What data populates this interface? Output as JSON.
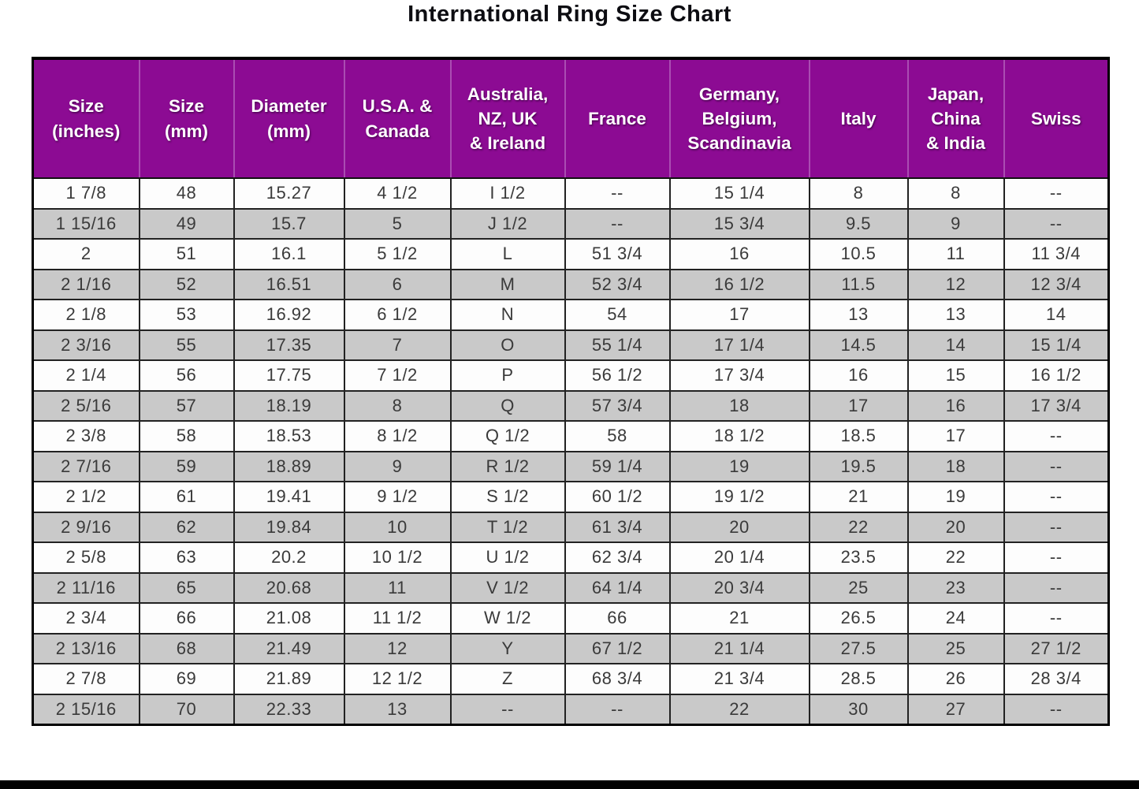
{
  "title": "International Ring Size Chart",
  "colors": {
    "header-bg": "#8C0B93",
    "header-text": "#FFFFFF",
    "stripe-bg": "#C9C9C9",
    "row-bg": "#FDFDFD",
    "grid-border": "#222222",
    "cell-text": "#3A3A3A",
    "bottom-bar": "#000000"
  },
  "chart_data": {
    "type": "table",
    "title": "International Ring Size Chart",
    "columns": [
      "Size\n(inches)",
      "Size\n(mm)",
      "Diameter\n(mm)",
      "U.S.A. &\nCanada",
      "Australia,\nNZ, UK\n& Ireland",
      "France",
      "Germany,\nBelgium,\nScandinavia",
      "Italy",
      "Japan,\nChina\n& India",
      "Swiss"
    ],
    "rows": [
      [
        "1 7/8",
        "48",
        "15.27",
        "4 1/2",
        "I 1/2",
        "--",
        "15 1/4",
        "8",
        "8",
        "--"
      ],
      [
        "1 15/16",
        "49",
        "15.7",
        "5",
        "J 1/2",
        "--",
        "15 3/4",
        "9.5",
        "9",
        "--"
      ],
      [
        "2",
        "51",
        "16.1",
        "5 1/2",
        "L",
        "51 3/4",
        "16",
        "10.5",
        "11",
        "11 3/4"
      ],
      [
        "2 1/16",
        "52",
        "16.51",
        "6",
        "M",
        "52 3/4",
        "16 1/2",
        "11.5",
        "12",
        "12 3/4"
      ],
      [
        "2 1/8",
        "53",
        "16.92",
        "6 1/2",
        "N",
        "54",
        "17",
        "13",
        "13",
        "14"
      ],
      [
        "2 3/16",
        "55",
        "17.35",
        "7",
        "O",
        "55 1/4",
        "17 1/4",
        "14.5",
        "14",
        "15 1/4"
      ],
      [
        "2 1/4",
        "56",
        "17.75",
        "7 1/2",
        "P",
        "56 1/2",
        "17 3/4",
        "16",
        "15",
        "16 1/2"
      ],
      [
        "2 5/16",
        "57",
        "18.19",
        "8",
        "Q",
        "57 3/4",
        "18",
        "17",
        "16",
        "17 3/4"
      ],
      [
        "2 3/8",
        "58",
        "18.53",
        "8 1/2",
        "Q 1/2",
        "58",
        "18 1/2",
        "18.5",
        "17",
        "--"
      ],
      [
        "2 7/16",
        "59",
        "18.89",
        "9",
        "R 1/2",
        "59 1/4",
        "19",
        "19.5",
        "18",
        "--"
      ],
      [
        "2 1/2",
        "61",
        "19.41",
        "9 1/2",
        "S 1/2",
        "60 1/2",
        "19 1/2",
        "21",
        "19",
        "--"
      ],
      [
        "2 9/16",
        "62",
        "19.84",
        "10",
        "T 1/2",
        "61 3/4",
        "20",
        "22",
        "20",
        "--"
      ],
      [
        "2 5/8",
        "63",
        "20.2",
        "10 1/2",
        "U 1/2",
        "62 3/4",
        "20 1/4",
        "23.5",
        "22",
        "--"
      ],
      [
        "2 11/16",
        "65",
        "20.68",
        "11",
        "V 1/2",
        "64 1/4",
        "20 3/4",
        "25",
        "23",
        "--"
      ],
      [
        "2 3/4",
        "66",
        "21.08",
        "11 1/2",
        "W 1/2",
        "66",
        "21",
        "26.5",
        "24",
        "--"
      ],
      [
        "2 13/16",
        "68",
        "21.49",
        "12",
        "Y",
        "67 1/2",
        "21 1/4",
        "27.5",
        "25",
        "27 1/2"
      ],
      [
        "2 7/8",
        "69",
        "21.89",
        "12 1/2",
        "Z",
        "68 3/4",
        "21 3/4",
        "28.5",
        "26",
        "28 3/4"
      ],
      [
        "2 15/16",
        "70",
        "22.33",
        "13",
        "--",
        "--",
        "22",
        "30",
        "27",
        "--"
      ]
    ]
  }
}
